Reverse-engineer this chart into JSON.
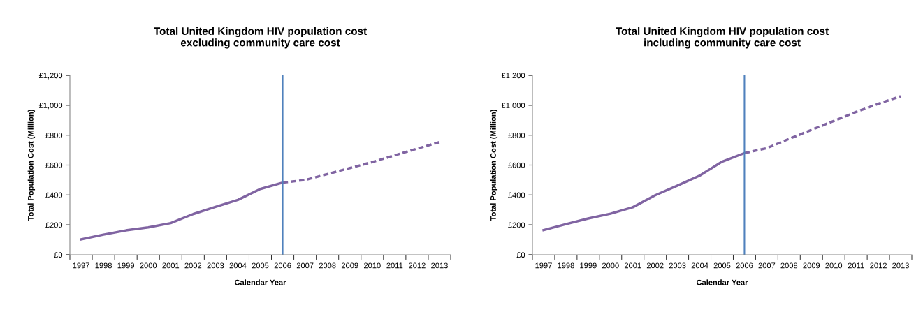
{
  "chart_data": [
    {
      "type": "line",
      "title": "Total United Kingdom HIV population cost\nexcluding community care cost",
      "xlabel": "Calendar Year",
      "ylabel": "Total Population Cost (Million)",
      "categories": [
        "1997",
        "1998",
        "1999",
        "2000",
        "2001",
        "2002",
        "2003",
        "2004",
        "2005",
        "2006",
        "2007",
        "2008",
        "2009",
        "2010",
        "2011",
        "2012",
        "2013"
      ],
      "series": [
        {
          "color": "#8064a2",
          "line_style": "solid",
          "values": [
            103,
            135,
            163,
            183,
            212,
            272,
            320,
            367,
            440,
            483,
            null,
            null,
            null,
            null,
            null,
            null,
            null
          ]
        },
        {
          "color": "#8064a2",
          "line_style": "dashed",
          "values": [
            null,
            null,
            null,
            null,
            null,
            null,
            null,
            null,
            null,
            483,
            500,
            540,
            580,
            620,
            665,
            710,
            753
          ]
        }
      ],
      "ref_lines": [
        {
          "axis": "x",
          "value": "2006",
          "color": "#4f81bd"
        }
      ],
      "ylim": [
        0,
        1200
      ],
      "yticks": [
        {
          "value": 0,
          "label": "£0"
        },
        {
          "value": 200,
          "label": "£200"
        },
        {
          "value": 400,
          "label": "£400"
        },
        {
          "value": 600,
          "label": "£600"
        },
        {
          "value": 800,
          "label": "£800"
        },
        {
          "value": 1000,
          "label": "£1,000"
        },
        {
          "value": 1200,
          "label": "£1,200"
        }
      ],
      "grid": false,
      "legend": false
    },
    {
      "type": "line",
      "title": "Total United Kingdom HIV population cost\nincluding community care cost",
      "xlabel": "Calendar Year",
      "ylabel": "Total Population Cost (Million)",
      "categories": [
        "1997",
        "1998",
        "1999",
        "2000",
        "2001",
        "2002",
        "2003",
        "2004",
        "2005",
        "2006",
        "2007",
        "2008",
        "2009",
        "2010",
        "2011",
        "2012",
        "2013"
      ],
      "series": [
        {
          "color": "#8064a2",
          "line_style": "solid",
          "values": [
            165,
            205,
            243,
            275,
            318,
            398,
            463,
            530,
            623,
            680,
            null,
            null,
            null,
            null,
            null,
            null,
            null
          ]
        },
        {
          "color": "#8064a2",
          "line_style": "dashed",
          "values": [
            null,
            null,
            null,
            null,
            null,
            null,
            null,
            null,
            null,
            680,
            713,
            775,
            835,
            895,
            955,
            1010,
            1060
          ]
        }
      ],
      "ref_lines": [
        {
          "axis": "x",
          "value": "2006",
          "color": "#4f81bd"
        }
      ],
      "ylim": [
        0,
        1200
      ],
      "yticks": [
        {
          "value": 0,
          "label": "£0"
        },
        {
          "value": 200,
          "label": "£200"
        },
        {
          "value": 400,
          "label": "£400"
        },
        {
          "value": 600,
          "label": "£600"
        },
        {
          "value": 800,
          "label": "£800"
        },
        {
          "value": 1000,
          "label": "£1,000"
        },
        {
          "value": 1200,
          "label": "£1,200"
        }
      ],
      "grid": false,
      "legend": false
    }
  ]
}
